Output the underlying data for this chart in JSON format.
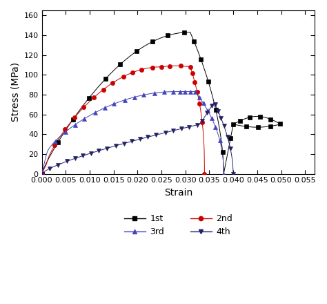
{
  "title": "",
  "xlabel": "Strain",
  "ylabel": "Stress (MPa)",
  "xlim": [
    0.0,
    0.057
  ],
  "ylim": [
    0,
    165
  ],
  "xticks": [
    0.0,
    0.005,
    0.01,
    0.015,
    0.02,
    0.025,
    0.03,
    0.035,
    0.04,
    0.045,
    0.05,
    0.055
  ],
  "yticks": [
    0,
    20,
    40,
    60,
    80,
    100,
    120,
    140,
    160
  ],
  "colors": {
    "1st": "#000000",
    "2nd": "#cc0000",
    "3rd": "#4444bb",
    "4th": "#222266"
  },
  "markers": {
    "1st": "s",
    "2nd": "o",
    "3rd": "^",
    "4th": "v"
  }
}
